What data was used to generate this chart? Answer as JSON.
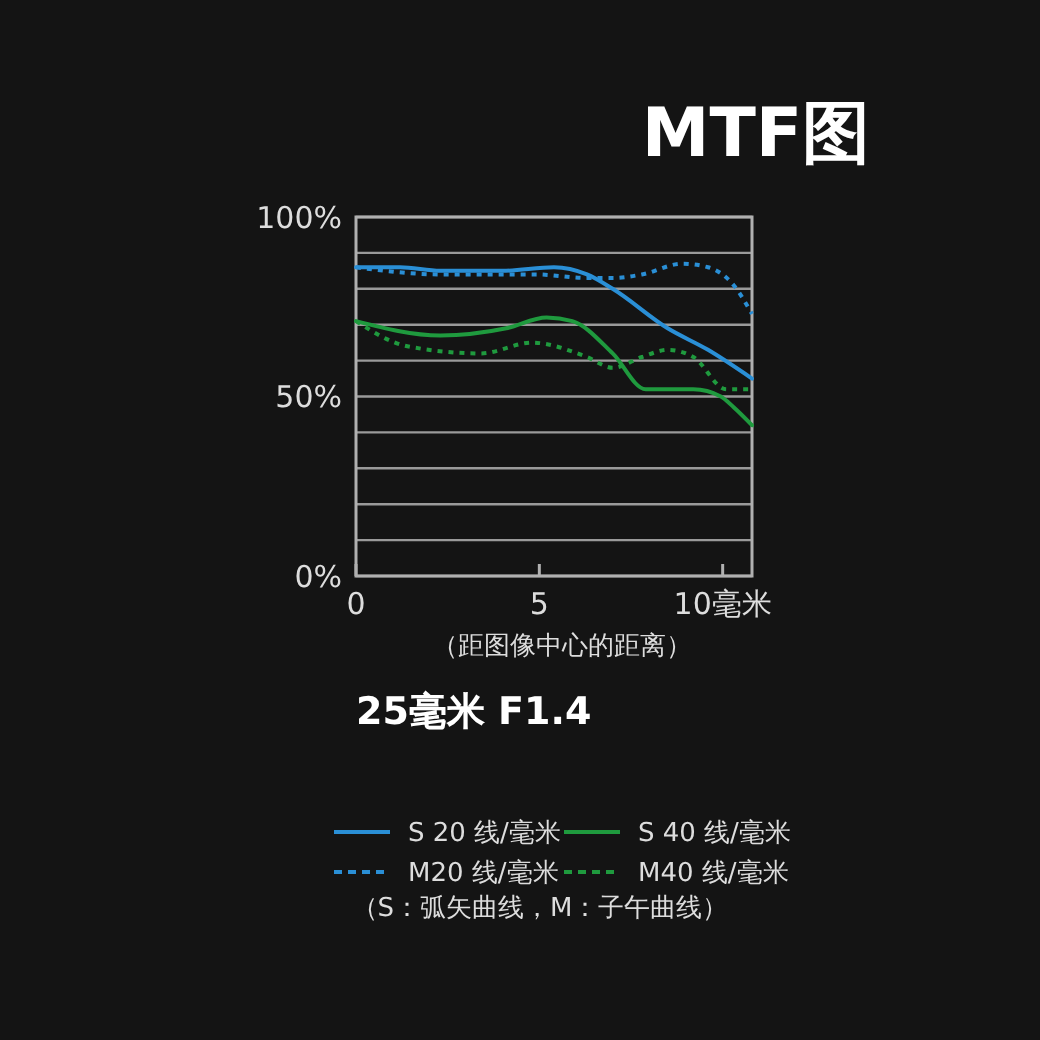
{
  "chart_data": {
    "type": "line",
    "title": "MTF图",
    "subtitle": "25毫米 F1.4",
    "xlabel": "（距图像中心的距离）",
    "annotations": [
      "（S：弧矢曲线，M：子午曲线）"
    ],
    "xlim": [
      0,
      10.8
    ],
    "ylim": [
      0,
      100
    ],
    "xticks": [
      0,
      5,
      {
        "value": 10,
        "label": "10毫米"
      }
    ],
    "yticks": [
      {
        "value": 0,
        "label": "0%"
      },
      {
        "value": 10,
        "label": null
      },
      {
        "value": 20,
        "label": null
      },
      {
        "value": 30,
        "label": null
      },
      {
        "value": 40,
        "label": null
      },
      {
        "value": 50,
        "label": "50%"
      },
      {
        "value": 60,
        "label": null
      },
      {
        "value": 70,
        "label": null
      },
      {
        "value": 80,
        "label": null
      },
      {
        "value": 90,
        "label": null
      },
      {
        "value": 100,
        "label": "100%"
      }
    ],
    "grid": "y",
    "legend": "bottom",
    "series": [
      {
        "name": "S 20 线/毫米",
        "color": "#2a8fd6",
        "line_style": "solid",
        "x": [
          0,
          1.2,
          2.3,
          4,
          5.4,
          6.3,
          7,
          8.5,
          9.6,
          10.8
        ],
        "values": [
          86,
          86,
          85,
          85,
          86,
          84,
          80,
          69,
          63,
          55
        ]
      },
      {
        "name": "M20 线/毫米",
        "color": "#2a8fd6",
        "line_style": "dotted",
        "x": [
          0,
          2.3,
          4.9,
          6.3,
          7,
          7.8,
          8.9,
          9.6,
          10.3,
          10.8
        ],
        "values": [
          86,
          84,
          84,
          83,
          83,
          84,
          87,
          86,
          81,
          73
        ]
      },
      {
        "name": "S 40 线/毫米",
        "color": "#1f9a3e",
        "line_style": "solid",
        "x": [
          0,
          2.3,
          4.1,
          5.2,
          5.9,
          7,
          7.9,
          9.2,
          9.95,
          10.3,
          10.8
        ],
        "values": [
          71,
          67,
          69,
          72,
          71,
          62,
          52,
          52,
          50,
          47,
          42
        ]
      },
      {
        "name": "M40 线/毫米",
        "color": "#1f9a3e",
        "line_style": "dotted",
        "x": [
          0,
          1.4,
          3.4,
          4.8,
          6.3,
          7,
          7.8,
          8.5,
          9.2,
          10.1,
          10.8
        ],
        "values": [
          71,
          64,
          62,
          65,
          61,
          58,
          61,
          63,
          61,
          52,
          52
        ]
      }
    ]
  }
}
